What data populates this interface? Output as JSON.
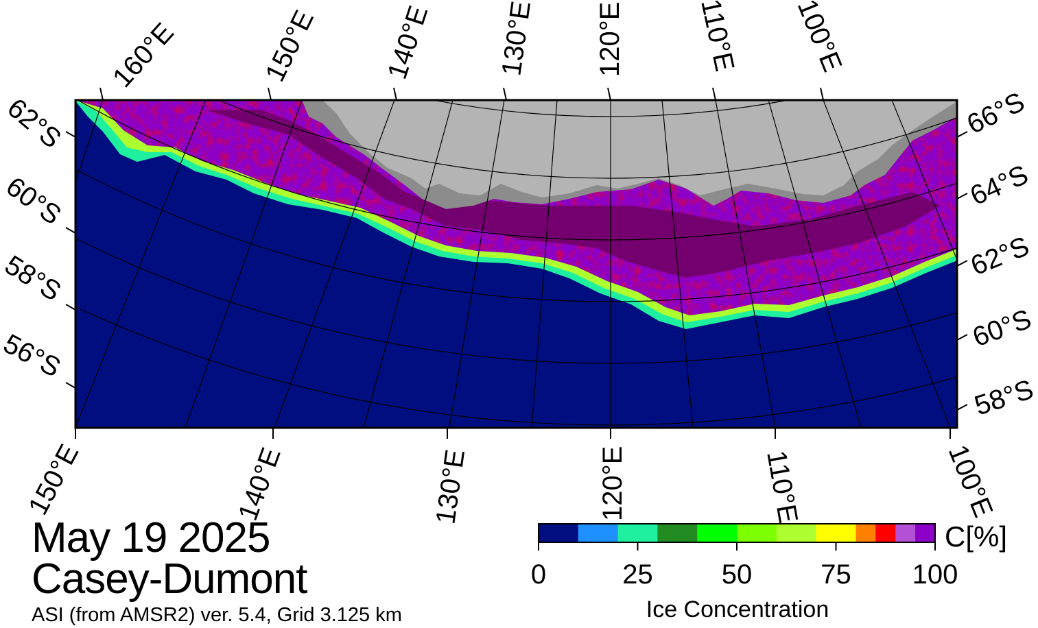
{
  "date_label": "May 19 2025",
  "region_label": "Casey-Dumont",
  "source_label": "ASI (from AMSR2) ver. 5.4,  Grid 3.125 km",
  "colors": {
    "ocean": "#000e80",
    "land": "#b4b4b4",
    "ice_shelf": "#8c8c8c",
    "frame": "#000000",
    "graticule": "#000000"
  },
  "map": {
    "top_lon_labels": [
      "160°E",
      "150°E",
      "140°E",
      "130°E",
      "120°E",
      "110°E",
      "100°E"
    ],
    "bottom_lon_labels": [
      "150°E",
      "140°E",
      "130°E",
      "120°E",
      "110°E",
      "100°E"
    ],
    "left_lat_labels": [
      "62°S",
      "60°S",
      "58°S",
      "56°S"
    ],
    "right_lat_labels": [
      "66°S",
      "64°S",
      "62°S",
      "60°S",
      "58°S"
    ]
  },
  "legend": {
    "title": "Ice Concentration",
    "unit": "C[%]",
    "tick_labels": [
      "0",
      "25",
      "50",
      "75",
      "100"
    ],
    "ticks": [
      0,
      25,
      50,
      75,
      100
    ],
    "bins": [
      {
        "from": 0,
        "to": 10,
        "color": "#000e80"
      },
      {
        "from": 10,
        "to": 20,
        "color": "#1e90ff"
      },
      {
        "from": 20,
        "to": 30,
        "color": "#1ef0a0"
      },
      {
        "from": 30,
        "to": 40,
        "color": "#228b22"
      },
      {
        "from": 40,
        "to": 50,
        "color": "#00ff00"
      },
      {
        "from": 50,
        "to": 60,
        "color": "#7cff00"
      },
      {
        "from": 60,
        "to": 70,
        "color": "#adff2f"
      },
      {
        "from": 70,
        "to": 80,
        "color": "#ffff00"
      },
      {
        "from": 80,
        "to": 85,
        "color": "#ff7f00"
      },
      {
        "from": 85,
        "to": 90,
        "color": "#ff0000"
      },
      {
        "from": 90,
        "to": 95,
        "color": "#b450d4"
      },
      {
        "from": 95,
        "to": 100,
        "color": "#8c00c8"
      }
    ],
    "dense_ice_color": "#73006e"
  }
}
